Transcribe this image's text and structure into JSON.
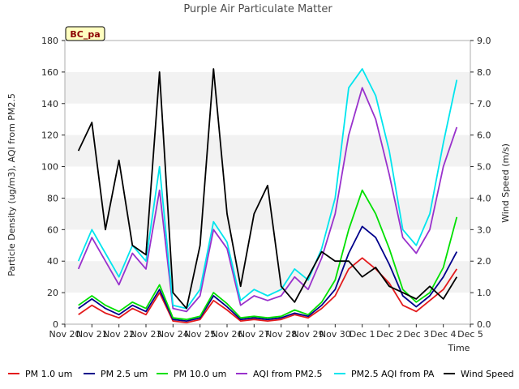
{
  "chart_data": {
    "type": "line",
    "title": "Purple Air Particulate Matter",
    "site_label": "BC_pa",
    "xlabel": "Time",
    "ylabel": "Particle Density (ug/m3), AQI from PM2.5",
    "y2label": "Wind Speed (m/s)",
    "ylim": [
      0,
      180
    ],
    "y2lim": [
      0,
      9
    ],
    "yticks": [
      "0",
      "20",
      "40",
      "60",
      "80",
      "100",
      "120",
      "140",
      "160",
      "180"
    ],
    "y2ticks": [
      "0.0",
      "1.0",
      "2.0",
      "3.0",
      "4.0",
      "5.0",
      "6.0",
      "7.0",
      "8.0",
      "9.0"
    ],
    "xlim": [
      0,
      15
    ],
    "xticks": [
      "Nov 20",
      "Nov 21",
      "Nov 22",
      "Nov 23",
      "Nov 24",
      "Nov 25",
      "Nov 26",
      "Nov 27",
      "Nov 28",
      "Nov 29",
      "Nov 30",
      "Dec 1",
      "Dec 2",
      "Dec 3",
      "Dec 4",
      "Dec 5"
    ],
    "grid": false,
    "shaded_bands": [
      [
        20,
        40
      ],
      [
        60,
        80
      ],
      [
        100,
        120
      ],
      [
        140,
        160
      ]
    ],
    "legend_position": "bottom",
    "series": [
      {
        "name": "PM 1.0 um",
        "color": "#e31a1c",
        "axis": "left",
        "x": [
          0.5,
          1.0,
          1.5,
          2.0,
          2.5,
          3.0,
          3.5,
          4.0,
          4.5,
          5.0,
          5.5,
          6.0,
          6.5,
          7.0,
          7.5,
          8.0,
          8.5,
          9.0,
          9.5,
          10.0,
          10.5,
          11.0,
          11.5,
          12.0,
          12.5,
          13.0,
          13.5,
          14.0,
          14.5
        ],
        "y": [
          6,
          12,
          7,
          4,
          10,
          6,
          20,
          2,
          1,
          3,
          15,
          9,
          2,
          3,
          2,
          3,
          6,
          4,
          10,
          18,
          35,
          42,
          35,
          26,
          12,
          8,
          15,
          22,
          35
        ]
      },
      {
        "name": "PM 2.5 um",
        "color": "#00008b",
        "axis": "left",
        "x": [
          0.5,
          1.0,
          1.5,
          2.0,
          2.5,
          3.0,
          3.5,
          4.0,
          4.5,
          5.0,
          5.5,
          6.0,
          6.5,
          7.0,
          7.5,
          8.0,
          8.5,
          9.0,
          9.5,
          10.0,
          10.5,
          11.0,
          11.5,
          12.0,
          12.5,
          13.0,
          13.5,
          14.0,
          14.5
        ],
        "y": [
          10,
          16,
          10,
          6,
          12,
          8,
          22,
          3,
          2,
          4,
          18,
          11,
          3,
          4,
          3,
          4,
          7,
          5,
          12,
          22,
          45,
          62,
          55,
          38,
          18,
          11,
          18,
          30,
          46
        ]
      },
      {
        "name": "PM 10.0 um",
        "color": "#00e000",
        "axis": "left",
        "x": [
          0.5,
          1.0,
          1.5,
          2.0,
          2.5,
          3.0,
          3.5,
          4.0,
          4.5,
          5.0,
          5.5,
          6.0,
          6.5,
          7.0,
          7.5,
          8.0,
          8.5,
          9.0,
          9.5,
          10.0,
          10.5,
          11.0,
          11.5,
          12.0,
          12.5,
          13.0,
          13.5,
          14.0,
          14.5
        ],
        "y": [
          12,
          18,
          12,
          8,
          14,
          10,
          25,
          4,
          3,
          5,
          20,
          13,
          4,
          5,
          4,
          5,
          9,
          6,
          14,
          28,
          60,
          85,
          70,
          48,
          22,
          14,
          20,
          36,
          68
        ]
      },
      {
        "name": "AQI from PM2.5",
        "color": "#9932cc",
        "axis": "left",
        "x": [
          0.5,
          1.0,
          1.5,
          2.0,
          2.5,
          3.0,
          3.5,
          4.0,
          4.5,
          5.0,
          5.5,
          6.0,
          6.5,
          7.0,
          7.5,
          8.0,
          8.5,
          9.0,
          9.5,
          10.0,
          10.5,
          11.0,
          11.5,
          12.0,
          12.5,
          13.0,
          13.5,
          14.0,
          14.5
        ],
        "y": [
          35,
          55,
          40,
          25,
          45,
          35,
          85,
          10,
          8,
          18,
          60,
          48,
          12,
          18,
          15,
          18,
          30,
          22,
          42,
          70,
          120,
          150,
          130,
          95,
          55,
          45,
          60,
          100,
          125
        ]
      },
      {
        "name": "PM2.5 AQI from PA",
        "color": "#00e5ee",
        "axis": "left",
        "x": [
          0.5,
          1.0,
          1.5,
          2.0,
          2.5,
          3.0,
          3.5,
          4.0,
          4.5,
          5.0,
          5.5,
          6.0,
          6.5,
          7.0,
          7.5,
          8.0,
          8.5,
          9.0,
          9.5,
          10.0,
          10.5,
          11.0,
          11.5,
          12.0,
          12.5,
          13.0,
          13.5,
          14.0,
          14.5
        ],
        "y": [
          40,
          60,
          45,
          30,
          50,
          40,
          100,
          12,
          10,
          22,
          65,
          52,
          15,
          22,
          18,
          22,
          35,
          28,
          48,
          80,
          150,
          162,
          145,
          110,
          60,
          50,
          70,
          115,
          155
        ]
      },
      {
        "name": "Wind Speed",
        "color": "#000000",
        "axis": "right",
        "x": [
          0.5,
          1.0,
          1.5,
          2.0,
          2.5,
          3.0,
          3.5,
          4.0,
          4.5,
          5.0,
          5.5,
          6.0,
          6.5,
          7.0,
          7.5,
          8.0,
          8.5,
          9.0,
          9.5,
          10.0,
          10.5,
          11.0,
          11.5,
          12.0,
          12.5,
          13.0,
          13.5,
          14.0,
          14.5
        ],
        "y": [
          5.5,
          6.4,
          3.0,
          5.2,
          2.5,
          2.2,
          8.0,
          1.0,
          0.5,
          2.5,
          8.1,
          3.5,
          1.2,
          3.5,
          4.4,
          1.2,
          0.7,
          1.5,
          2.3,
          2.0,
          2.0,
          1.5,
          1.8,
          1.2,
          1.0,
          0.8,
          1.2,
          0.8,
          1.5
        ]
      }
    ]
  }
}
